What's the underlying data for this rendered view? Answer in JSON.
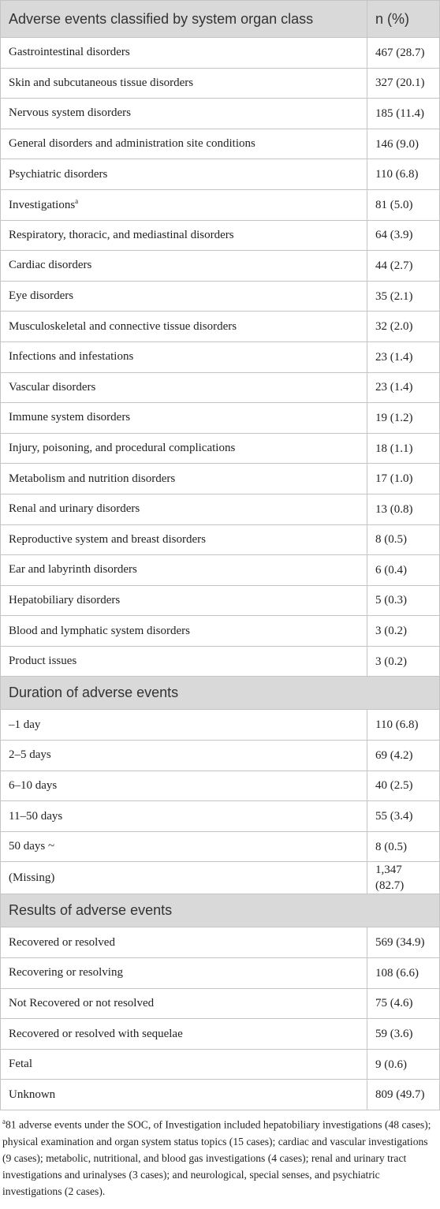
{
  "table": {
    "sections": [
      {
        "title": "Adverse events classified by system organ class",
        "column": "n (%)",
        "rows": [
          {
            "label": "Gastrointestinal disorders",
            "value": "467 (28.7)"
          },
          {
            "label": "Skin and subcutaneous tissue disorders",
            "value": "327 (20.1)"
          },
          {
            "label": "Nervous system disorders",
            "value": "185 (11.4)"
          },
          {
            "label": "General disorders and administration site conditions",
            "value": "146 (9.0)"
          },
          {
            "label": "Psychiatric disorders",
            "value": "110 (6.8)"
          },
          {
            "label": "Investigations",
            "note": "a",
            "value": "81 (5.0)"
          },
          {
            "label": "Respiratory, thoracic, and mediastinal disorders",
            "value": "64 (3.9)"
          },
          {
            "label": "Cardiac disorders",
            "value": "44 (2.7)"
          },
          {
            "label": "Eye disorders",
            "value": "35 (2.1)"
          },
          {
            "label": "Musculoskeletal and connective tissue disorders",
            "value": "32 (2.0)"
          },
          {
            "label": "Infections and infestations",
            "value": "23 (1.4)"
          },
          {
            "label": "Vascular disorders",
            "value": "23 (1.4)"
          },
          {
            "label": "Immune system disorders",
            "value": "19 (1.2)"
          },
          {
            "label": "Injury, poisoning, and procedural complications",
            "value": "18 (1.1)"
          },
          {
            "label": "Metabolism and nutrition disorders",
            "value": "17 (1.0)"
          },
          {
            "label": "Renal and urinary disorders",
            "value": "13 (0.8)"
          },
          {
            "label": "Reproductive system and breast disorders",
            "value": "8 (0.5)"
          },
          {
            "label": "Ear and labyrinth disorders",
            "value": "6 (0.4)"
          },
          {
            "label": "Hepatobiliary disorders",
            "value": "5 (0.3)"
          },
          {
            "label": "Blood and lymphatic system disorders",
            "value": "3 (0.2)"
          },
          {
            "label": "Product issues",
            "value": "3 (0.2)"
          }
        ]
      },
      {
        "title": "Duration of adverse events",
        "rows": [
          {
            "label": "–1 day",
            "value": "110 (6.8)"
          },
          {
            "label": "2–5 days",
            "value": "69 (4.2)"
          },
          {
            "label": "6–10 days",
            "value": "40 (2.5)"
          },
          {
            "label": "11–50 days",
            "value": "55 (3.4)"
          },
          {
            "label": "50 days ~",
            "value": "8 (0.5)"
          },
          {
            "label": "(Missing)",
            "value": "1,347 (82.7)"
          }
        ]
      },
      {
        "title": "Results of adverse events",
        "rows": [
          {
            "label": "Recovered or resolved",
            "value": "569 (34.9)"
          },
          {
            "label": "Recovering or resolving",
            "value": "108 (6.6)"
          },
          {
            "label": "Not Recovered or not resolved",
            "value": "75 (4.6)"
          },
          {
            "label": "Recovered or resolved with sequelae",
            "value": "59 (3.6)"
          },
          {
            "label": "Fetal",
            "value": "9 (0.6)"
          },
          {
            "label": "Unknown",
            "value": "809 (49.7)"
          }
        ]
      }
    ]
  },
  "footnote": {
    "marker": "a",
    "text": "81 adverse events under the SOC, of Investigation included hepatobiliary investigations (48 cases); physical examination and organ system status topics (15 cases); cardiac and vascular investigations (9 cases); metabolic, nutritional, and blood gas investigations (4 cases); renal and urinary tract investigations and urinalyses (3 cases); and neurological, special senses, and psychiatric investigations (2 cases)."
  }
}
